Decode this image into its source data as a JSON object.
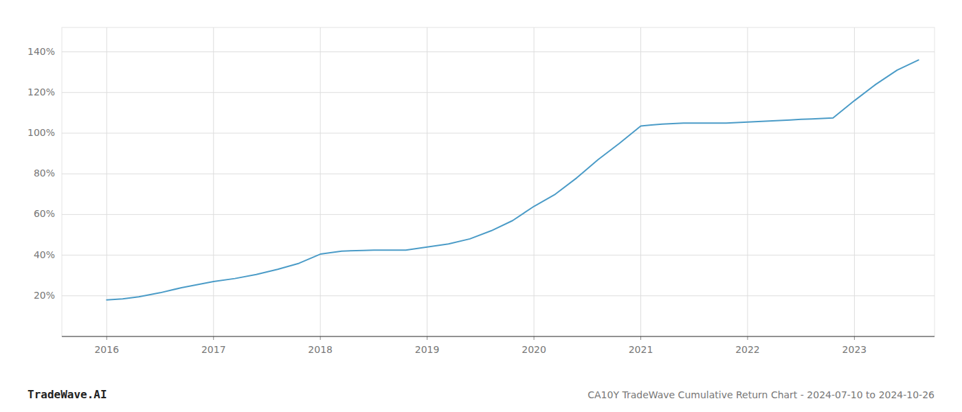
{
  "chart_data": {
    "type": "line",
    "title": "CA10Y TradeWave Cumulative Return Chart - 2024-07-10 to 2024-10-26",
    "annotations": [
      "TradeWave.AI"
    ],
    "color": "#4a9bc7",
    "grid": true,
    "x": [
      2016.0,
      2016.15,
      2016.3,
      2016.5,
      2016.7,
      2016.9,
      2017.0,
      2017.2,
      2017.4,
      2017.6,
      2017.8,
      2018.0,
      2018.2,
      2018.4,
      2018.5,
      2018.6,
      2018.8,
      2019.0,
      2019.2,
      2019.4,
      2019.6,
      2019.8,
      2020.0,
      2020.2,
      2020.4,
      2020.6,
      2020.8,
      2021.0,
      2021.1,
      2021.2,
      2021.4,
      2021.6,
      2021.8,
      2022.0,
      2022.2,
      2022.4,
      2022.5,
      2022.6,
      2022.8,
      2023.0,
      2023.2,
      2023.4,
      2023.6
    ],
    "values": [
      18.0,
      18.5,
      19.5,
      21.5,
      24.0,
      26.0,
      27.0,
      28.5,
      30.5,
      33.0,
      36.0,
      40.5,
      42.0,
      42.3,
      42.5,
      42.5,
      42.5,
      44.0,
      45.5,
      48.0,
      52.0,
      57.0,
      64.0,
      70.0,
      78.0,
      87.0,
      95.0,
      103.5,
      104.0,
      104.5,
      105.0,
      105.0,
      105.0,
      105.5,
      106.0,
      106.5,
      106.8,
      107.0,
      107.5,
      116.0,
      124.0,
      131.0,
      136.0
    ],
    "xlim": [
      2015.58,
      2023.75
    ],
    "ylim": [
      0,
      152
    ],
    "xticks": [
      2016,
      2017,
      2018,
      2019,
      2020,
      2021,
      2022,
      2023
    ],
    "yticks": [
      {
        "value": 20,
        "label": "20%"
      },
      {
        "value": 40,
        "label": "40%"
      },
      {
        "value": 60,
        "label": "60%"
      },
      {
        "value": 80,
        "label": "80%"
      },
      {
        "value": 100,
        "label": "100%"
      },
      {
        "value": 120,
        "label": "120%"
      },
      {
        "value": 140,
        "label": "140%"
      }
    ]
  }
}
